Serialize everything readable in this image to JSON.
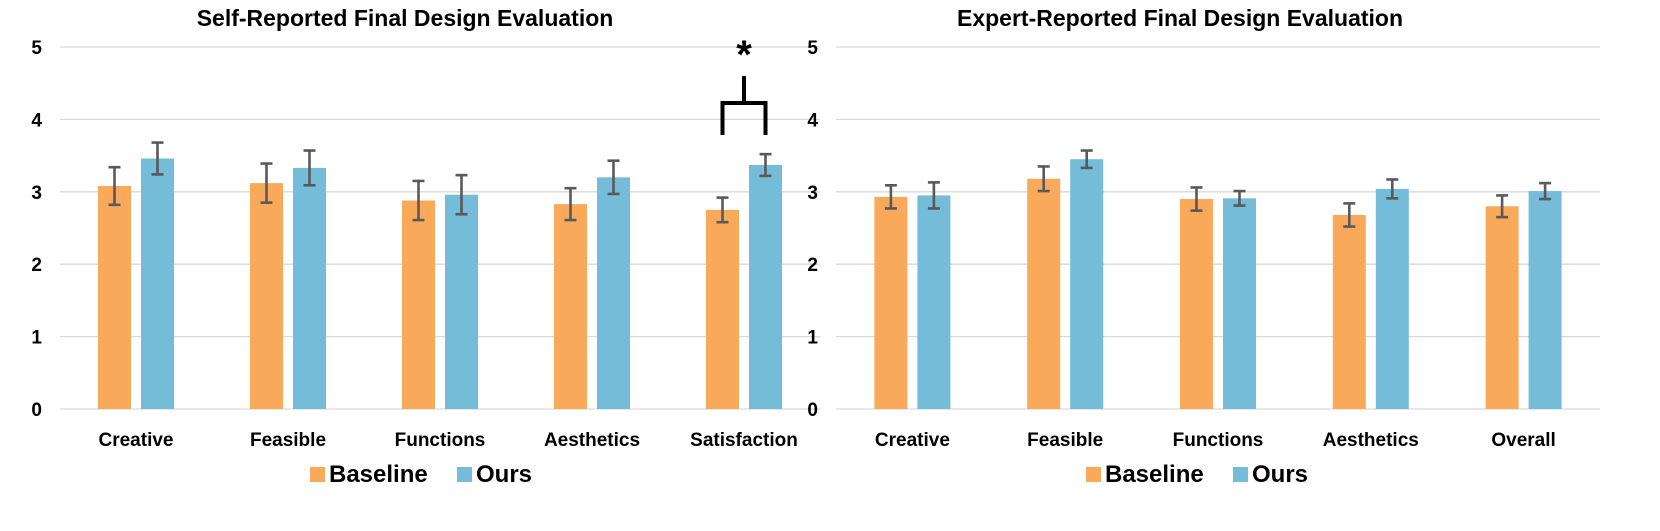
{
  "chart_data": [
    {
      "type": "bar",
      "title": "Self-Reported Final Design Evaluation",
      "xlabel": "",
      "ylabel": "",
      "ylim": [
        0,
        5
      ],
      "yticks": [
        "0",
        "1",
        "2",
        "3",
        "4",
        "5"
      ],
      "grid": true,
      "legend_position": "bottom",
      "categories": [
        "Creative",
        "Feasible",
        "Functions",
        "Aesthetics",
        "Satisfaction"
      ],
      "series": [
        {
          "name": "Baseline",
          "color": "#F9A95A",
          "values": [
            3.08,
            3.12,
            2.88,
            2.83,
            2.75
          ],
          "errors": [
            0.26,
            0.27,
            0.27,
            0.22,
            0.17
          ]
        },
        {
          "name": "Ours",
          "color": "#74BCD8",
          "values": [
            3.46,
            3.33,
            2.96,
            3.2,
            3.37
          ],
          "errors": [
            0.22,
            0.24,
            0.27,
            0.23,
            0.15
          ]
        }
      ],
      "annotations": [
        {
          "text": "*",
          "category": "Satisfaction",
          "meaning": "significance bracket between Baseline and Ours"
        }
      ]
    },
    {
      "type": "bar",
      "title": "Expert-Reported Final Design Evaluation",
      "xlabel": "",
      "ylabel": "",
      "ylim": [
        0,
        5
      ],
      "yticks": [
        "0",
        "1",
        "2",
        "3",
        "4",
        "5"
      ],
      "grid": true,
      "legend_position": "bottom",
      "categories": [
        "Creative",
        "Feasible",
        "Functions",
        "Aesthetics",
        "Overall"
      ],
      "series": [
        {
          "name": "Baseline",
          "color": "#F9A95A",
          "values": [
            2.93,
            3.18,
            2.9,
            2.68,
            2.8
          ],
          "errors": [
            0.16,
            0.17,
            0.16,
            0.16,
            0.15
          ]
        },
        {
          "name": "Ours",
          "color": "#74BCD8",
          "values": [
            2.95,
            3.45,
            2.91,
            3.04,
            3.01
          ],
          "errors": [
            0.18,
            0.12,
            0.1,
            0.13,
            0.11
          ]
        }
      ],
      "annotations": []
    }
  ]
}
